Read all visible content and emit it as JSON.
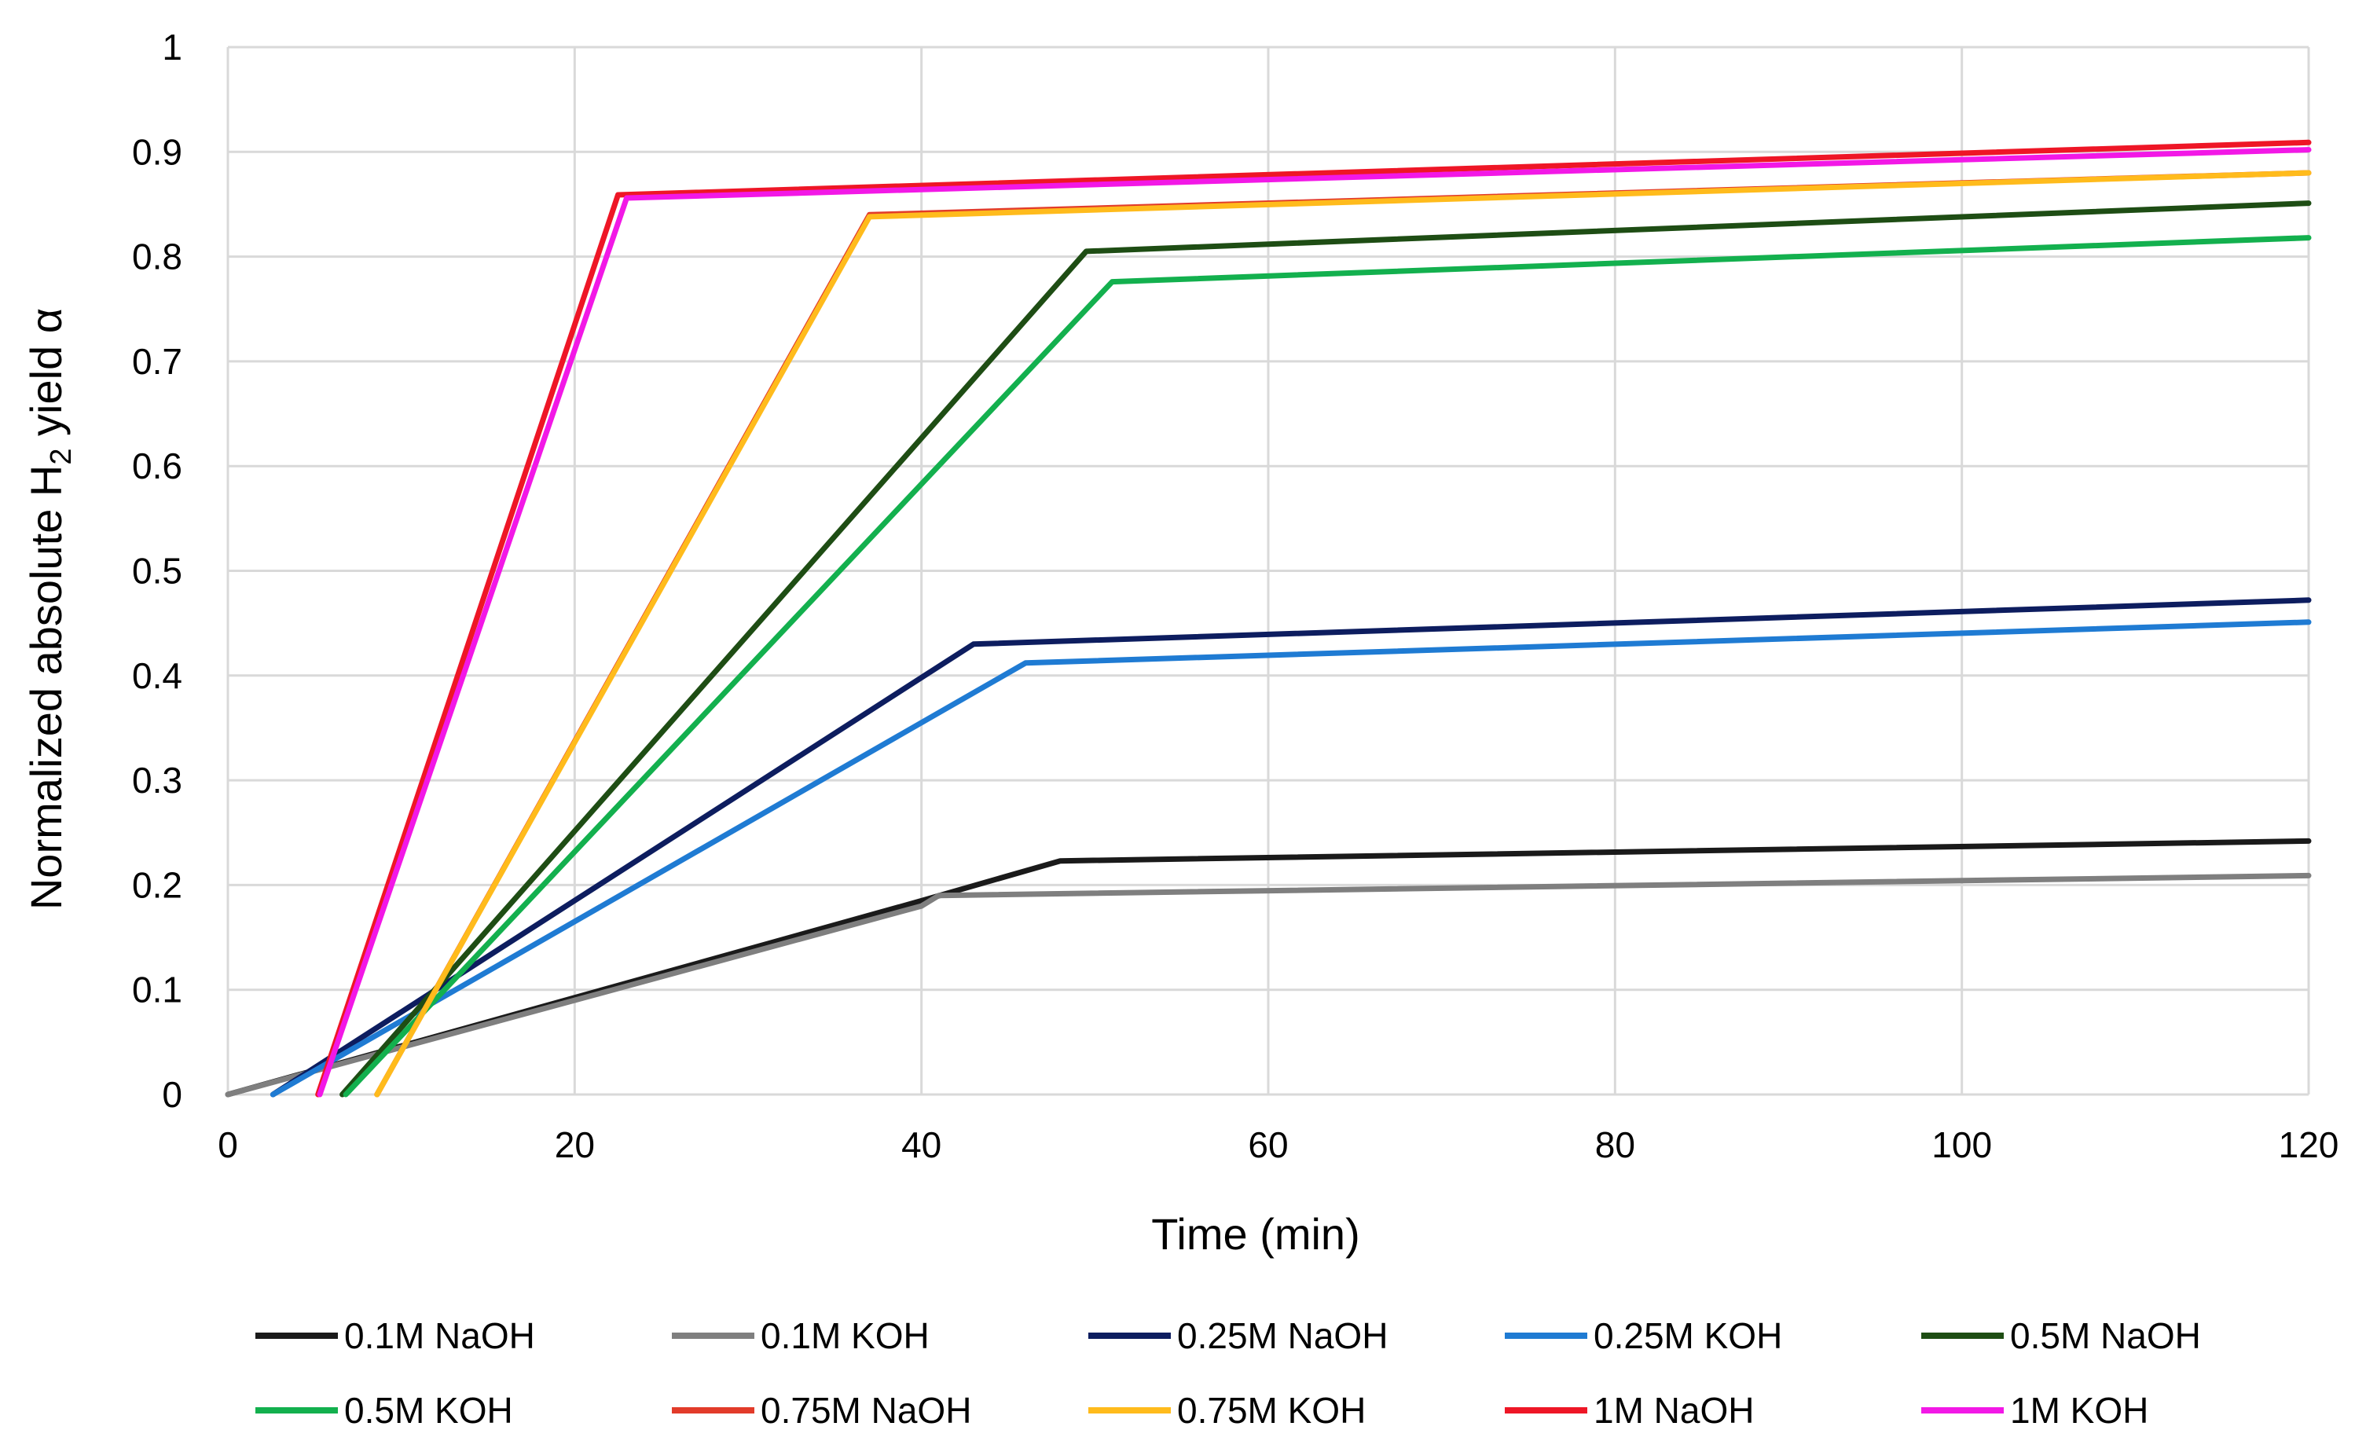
{
  "chart_data": {
    "type": "line",
    "title": "",
    "xlabel": "Time (min)",
    "ylabel_main": "Normalized absolute H",
    "ylabel_subscript": "2",
    "ylabel_rest": " yield α",
    "xlim": [
      0,
      120
    ],
    "ylim": [
      0,
      1
    ],
    "xticks": [
      0,
      20,
      40,
      60,
      80,
      100,
      120
    ],
    "yticks": [
      0,
      0.1,
      0.2,
      0.3,
      0.4,
      0.5,
      0.6,
      0.7,
      0.8,
      0.9,
      1
    ],
    "grid": true,
    "legend_position": "bottom",
    "series": [
      {
        "name": "0.1M NaOH",
        "color": "#1a1a1a",
        "x": [
          0,
          40,
          48,
          120
        ],
        "y": [
          0,
          0.185,
          0.223,
          0.242
        ]
      },
      {
        "name": "0.1M KOH",
        "color": "#7f7f7f",
        "x": [
          0,
          40,
          41,
          120
        ],
        "y": [
          0,
          0.18,
          0.19,
          0.209
        ]
      },
      {
        "name": "0.25M NaOH",
        "color": "#0d1d5f",
        "x": [
          2.6,
          43,
          120
        ],
        "y": [
          0,
          0.43,
          0.472
        ]
      },
      {
        "name": "0.25M KOH",
        "color": "#1f7bd3",
        "x": [
          2.6,
          46,
          120
        ],
        "y": [
          0,
          0.412,
          0.451
        ]
      },
      {
        "name": "0.5M NaOH",
        "color": "#1e4d14",
        "x": [
          6.6,
          49.5,
          120
        ],
        "y": [
          0,
          0.805,
          0.851
        ]
      },
      {
        "name": "0.5M KOH",
        "color": "#13b04e",
        "x": [
          6.8,
          51,
          120
        ],
        "y": [
          0,
          0.776,
          0.818
        ]
      },
      {
        "name": "0.75M NaOH",
        "color": "#e23b2a",
        "x": [
          8.6,
          37,
          120
        ],
        "y": [
          0,
          0.84,
          0.88
        ]
      },
      {
        "name": "0.75M KOH",
        "color": "#ffbb1c",
        "x": [
          8.6,
          37,
          120
        ],
        "y": [
          0,
          0.838,
          0.88
        ]
      },
      {
        "name": "1M NaOH",
        "color": "#ee1626",
        "x": [
          5.2,
          22.5,
          120
        ],
        "y": [
          0,
          0.859,
          0.909
        ]
      },
      {
        "name": "1M KOH",
        "color": "#f218e6",
        "x": [
          5.3,
          23,
          120
        ],
        "y": [
          0,
          0.856,
          0.902
        ]
      }
    ]
  }
}
